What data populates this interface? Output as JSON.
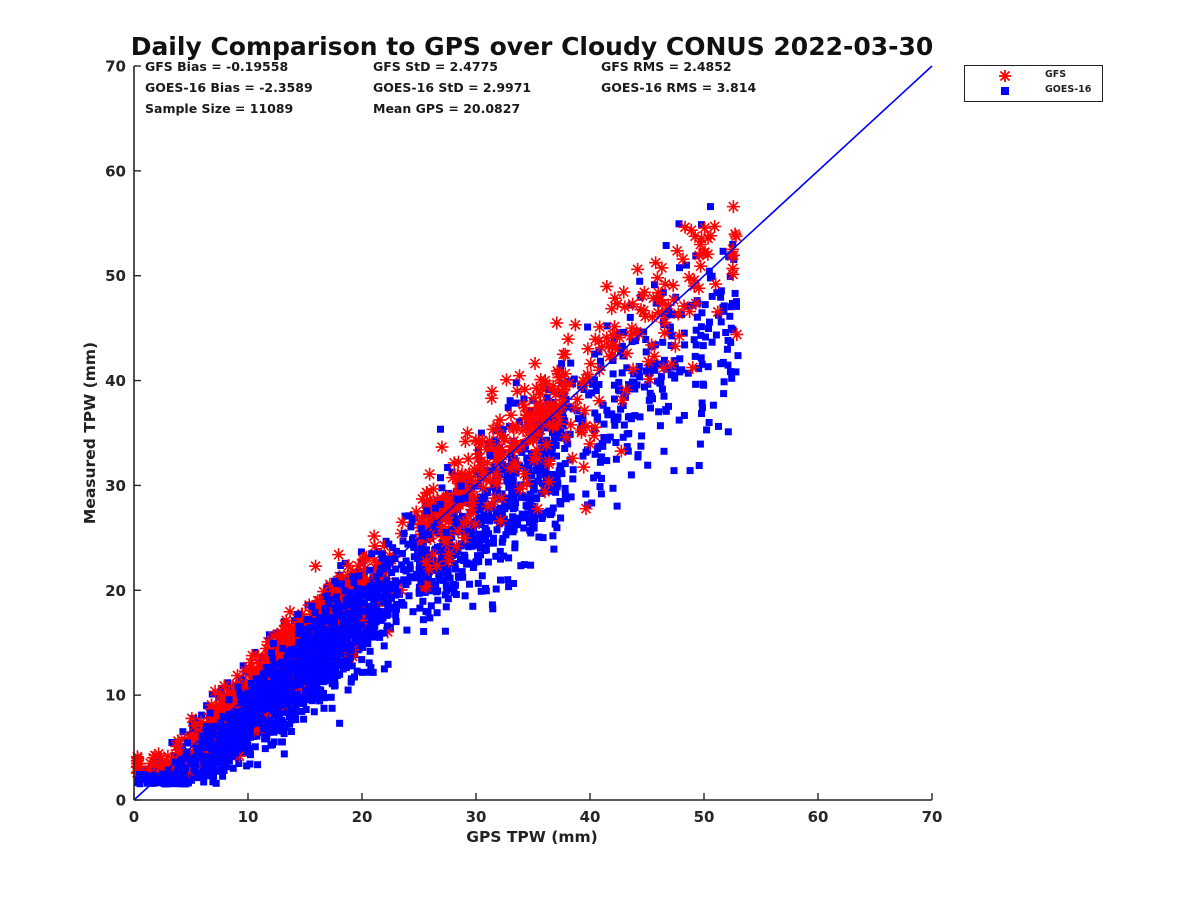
{
  "chart_data": {
    "type": "scatter",
    "title": "Daily Comparison to GPS over Cloudy CONUS 2022-03-30",
    "xlabel": "GPS TPW (mm)",
    "ylabel": "Measured TPW (mm)",
    "xlim": [
      0,
      70
    ],
    "ylim": [
      0,
      70
    ],
    "xticks": [
      0,
      10,
      20,
      30,
      40,
      50,
      60,
      70
    ],
    "yticks": [
      0,
      10,
      20,
      30,
      40,
      50,
      60,
      70
    ],
    "grid": false,
    "legend_position": "outside-top-right",
    "reference_line": {
      "x": [
        0,
        70
      ],
      "y": [
        0,
        70
      ],
      "color": "#0000ff"
    },
    "series": [
      {
        "name": "GFS",
        "marker": "asterisk",
        "color": "#ff0000"
      },
      {
        "name": "GOES-16",
        "marker": "square",
        "color": "#0000ff"
      }
    ],
    "stats": [
      [
        "GFS Bias = -0.19558",
        "GFS StD = 2.4775",
        "GFS RMS = 2.4852"
      ],
      [
        "GOES-16 Bias = -2.3589",
        "GOES-16 StD = 2.9971",
        "GOES-16 RMS = 3.814"
      ],
      [
        "Sample Size = 11089",
        "Mean GPS = 20.0827"
      ]
    ],
    "distribution": {
      "x_range": [
        0.5,
        53.5
      ],
      "gfs_mean_offset": -0.2,
      "gfs_spread": 2.5,
      "goes_mean_offset": -2.36,
      "goes_spread": 3.0
    }
  }
}
